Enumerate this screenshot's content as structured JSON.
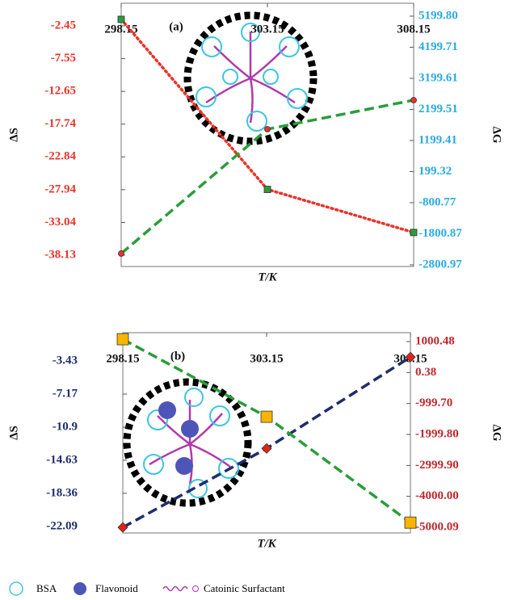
{
  "chart_data": [
    {
      "type": "line",
      "panel_label": "(a)",
      "xlabel": "T/K",
      "ylabel": "ΔS",
      "y2label": "ΔG",
      "x": [
        298.15,
        303.15,
        308.15
      ],
      "xlim": [
        298.15,
        308.15
      ],
      "xticks": [
        298.15,
        303.15,
        308.15
      ],
      "ylim": [
        -39.89,
        1.06
      ],
      "yticks": [
        -2.45,
        -7.55,
        -12.65,
        -17.74,
        -22.84,
        -27.94,
        -33.04,
        -38.13
      ],
      "y_color": "#e8332a",
      "y2lim": [
        -2852.9,
        5615.5
      ],
      "y2ticks": [
        {
          "value": 5199.8,
          "label": "5199.80"
        },
        4199.71,
        3199.61,
        2199.51,
        1199.41,
        199.32,
        -800.77,
        -1800.87,
        -2800.97
      ],
      "y2_color": "#29aae1",
      "series": [
        {
          "color": "#e8332a",
          "dash": "dotted",
          "marker": "square",
          "marker_color": "#2a9d3a",
          "values": [
            -1.45,
            -27.9,
            -34.6
          ]
        },
        {
          "color": "#2a9d3a",
          "dash": "dashed",
          "axis": "y2",
          "marker": "circle",
          "marker_color": "#e8332a",
          "values": [
            -2436,
            1564,
            2499
          ]
        }
      ]
    },
    {
      "type": "line",
      "panel_label": "(b)",
      "xlabel": "T/K",
      "ylabel": "ΔS",
      "y2label": "ΔG",
      "x": [
        298.15,
        303.15,
        308.15
      ],
      "xlim": [
        298.15,
        308.15
      ],
      "xticks": [
        298.15,
        303.15,
        308.15
      ],
      "ylim": [
        -22.83,
        -0.25
      ],
      "yticks": [
        -3.43,
        -7.17,
        -10.9,
        -14.63,
        -18.36,
        -22.09
      ],
      "y_color": "#1f2d6b",
      "y2lim": [
        -5182.7,
        1287.5
      ],
      "y2ticks": [
        1000.48,
        0.38,
        {
          "value": -999.7,
          "label": "-999.70"
        },
        {
          "value": -1999.8,
          "label": "-1999.80"
        },
        {
          "value": -2999.9,
          "label": "-2999.90"
        },
        {
          "value": -4000,
          "label": "-4000.00"
        },
        -5000.09
      ],
      "y2_color": "#c0272d",
      "series": [
        {
          "color": "#1f2d6b",
          "dash": "dashed",
          "marker": "diamond",
          "marker_color": "#e8201c",
          "values": [
            -22.2,
            -13.3,
            -3.0
          ]
        },
        {
          "color": "#2a9d3a",
          "dash": "dashed",
          "axis": "y2",
          "marker": "square",
          "marker_color": "#f7b500",
          "values": [
            1078,
            -1428,
            -4848
          ]
        }
      ]
    }
  ],
  "legend_items": [
    "BSA",
    "Flavonoid",
    "Catoinic Surfactant"
  ]
}
